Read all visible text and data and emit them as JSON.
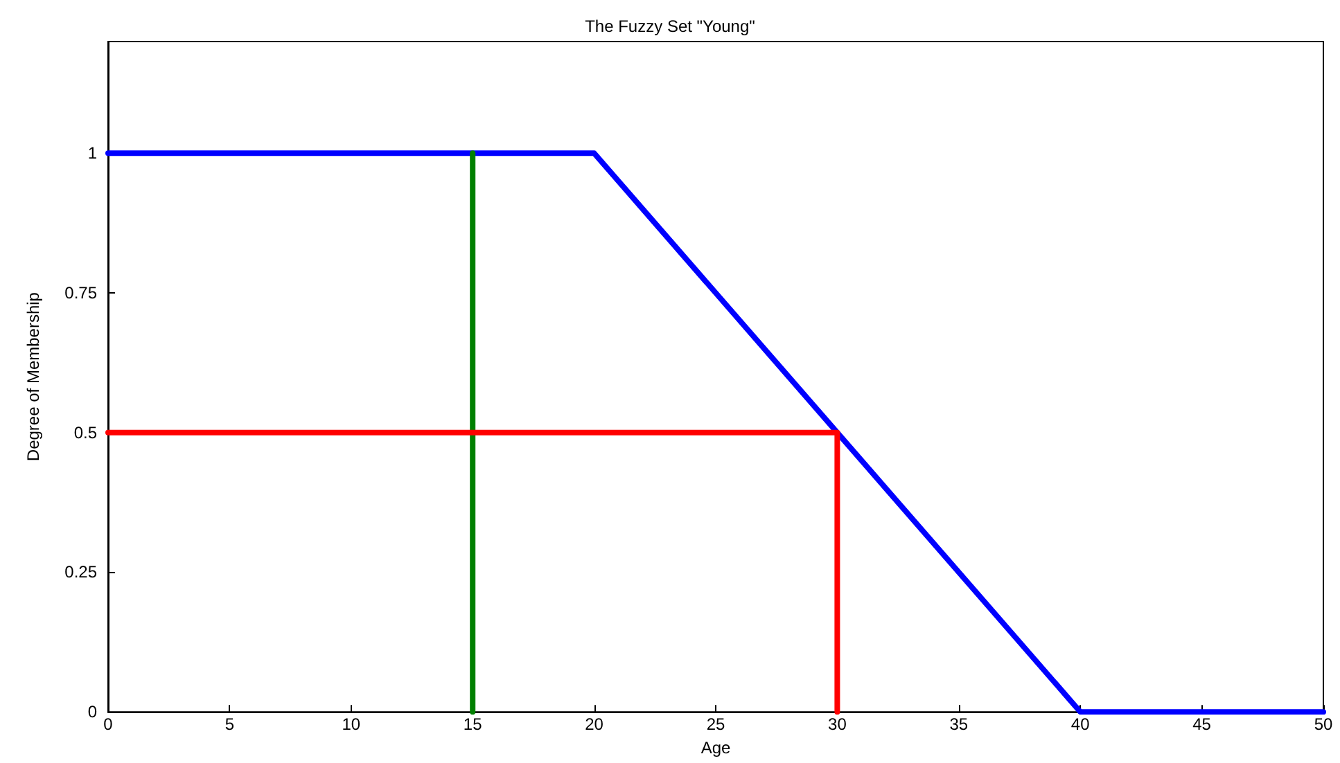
{
  "chart_data": {
    "type": "line",
    "title": "The Fuzzy Set \"Young\"",
    "xlabel": "Age",
    "ylabel": "Degree of Membership",
    "xlim": [
      0,
      50
    ],
    "xticks": [
      0,
      5,
      10,
      15,
      20,
      25,
      30,
      35,
      40,
      45,
      50
    ],
    "ylim": [
      0,
      1.2
    ],
    "yticks": [
      0,
      0.25,
      0.5,
      0.75,
      1
    ],
    "grid": false,
    "marker": "none",
    "line_style": "solid",
    "series": [
      {
        "color": "#0000ff",
        "x": [
          0,
          20,
          40,
          50
        ],
        "values": [
          1,
          1,
          0,
          0
        ]
      },
      {
        "color": "#008000",
        "x": [
          15,
          15
        ],
        "values": [
          0,
          1
        ]
      },
      {
        "color": "#ff0000",
        "x": [
          0,
          30,
          30
        ],
        "values": [
          0.5,
          0.5,
          0
        ]
      }
    ]
  }
}
